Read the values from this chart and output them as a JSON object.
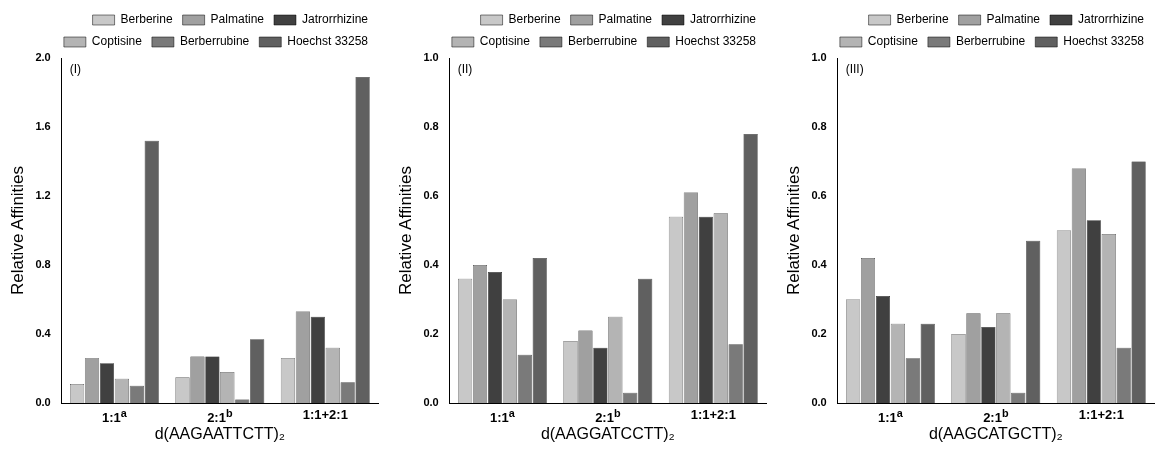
{
  "chart_data": [
    {
      "type": "bar",
      "annotations": [
        "(I)"
      ],
      "categories": [
        "1:1$^{a}$",
        "2:1$^{b}$",
        "1:1+2:1"
      ],
      "xlabel": "d(AAGAATTCTT)₂",
      "ylabel": "Relative Affinities",
      "ylim": [
        0,
        2.0
      ],
      "yticks": [
        {
          "value": 0,
          "label": "0.0"
        },
        0.4,
        0.8,
        1.2,
        1.6,
        {
          "value": 2,
          "label": "2.0"
        }
      ],
      "legend": "top right",
      "grid": false,
      "series": [
        {
          "name": "Berberine",
          "color": "#c8c8c8",
          "values": [
            0.11,
            0.15,
            0.26
          ]
        },
        {
          "name": "Palmatine",
          "color": "#a0a0a0",
          "values": [
            0.26,
            0.27,
            0.53
          ]
        },
        {
          "name": "Jatrorrhizine",
          "color": "#404040",
          "values": [
            0.23,
            0.27,
            0.5
          ]
        },
        {
          "name": "Coptisine",
          "color": "#b4b4b4",
          "values": [
            0.14,
            0.18,
            0.32
          ]
        },
        {
          "name": "Berberrubine",
          "color": "#7a7a7a",
          "values": [
            0.1,
            0.02,
            0.12
          ]
        },
        {
          "name": "Hoechst 33258",
          "color": "#606060",
          "values": [
            1.52,
            0.37,
            1.89
          ]
        }
      ]
    },
    {
      "type": "bar",
      "annotations": [
        "(II)"
      ],
      "categories": [
        "1:1$^{a}$",
        "2:1$^{b}$",
        "1:1+2:1"
      ],
      "xlabel": "d(AAGGATCCTT)₂",
      "ylabel": "Relative Affinities",
      "ylim": [
        0,
        1.0
      ],
      "yticks": [
        {
          "value": 0,
          "label": "0.0"
        },
        0.2,
        0.4,
        0.6,
        0.8,
        {
          "value": 1,
          "label": "1.0"
        }
      ],
      "legend": "top right",
      "grid": false,
      "series": [
        {
          "name": "Berberine",
          "color": "#c8c8c8",
          "values": [
            0.36,
            0.18,
            0.54
          ]
        },
        {
          "name": "Palmatine",
          "color": "#a0a0a0",
          "values": [
            0.4,
            0.21,
            0.61
          ]
        },
        {
          "name": "Jatrorrhizine",
          "color": "#404040",
          "values": [
            0.38,
            0.16,
            0.54
          ]
        },
        {
          "name": "Coptisine",
          "color": "#b4b4b4",
          "values": [
            0.3,
            0.25,
            0.55
          ]
        },
        {
          "name": "Berberrubine",
          "color": "#7a7a7a",
          "values": [
            0.14,
            0.03,
            0.17
          ]
        },
        {
          "name": "Hoechst 33258",
          "color": "#606060",
          "values": [
            0.42,
            0.36,
            0.78
          ]
        }
      ]
    },
    {
      "type": "bar",
      "annotations": [
        "(III)"
      ],
      "categories": [
        "1:1$^{a}$",
        "2:1$^{b}$",
        "1:1+2:1"
      ],
      "xlabel": "d(AAGCATGCTT)₂",
      "ylabel": "Relative Affinities",
      "ylim": [
        0,
        1.0
      ],
      "yticks": [
        {
          "value": 0,
          "label": "0.0"
        },
        0.2,
        0.4,
        0.6,
        0.8,
        {
          "value": 1,
          "label": "1.0"
        }
      ],
      "legend": "top right",
      "grid": false,
      "series": [
        {
          "name": "Berberine",
          "color": "#c8c8c8",
          "values": [
            0.3,
            0.2,
            0.5
          ]
        },
        {
          "name": "Palmatine",
          "color": "#a0a0a0",
          "values": [
            0.42,
            0.26,
            0.68
          ]
        },
        {
          "name": "Jatrorrhizine",
          "color": "#404040",
          "values": [
            0.31,
            0.22,
            0.53
          ]
        },
        {
          "name": "Coptisine",
          "color": "#b4b4b4",
          "values": [
            0.23,
            0.26,
            0.49
          ]
        },
        {
          "name": "Berberrubine",
          "color": "#7a7a7a",
          "values": [
            0.13,
            0.03,
            0.16
          ]
        },
        {
          "name": "Hoechst 33258",
          "color": "#606060",
          "values": [
            0.23,
            0.47,
            0.7
          ]
        }
      ]
    }
  ]
}
